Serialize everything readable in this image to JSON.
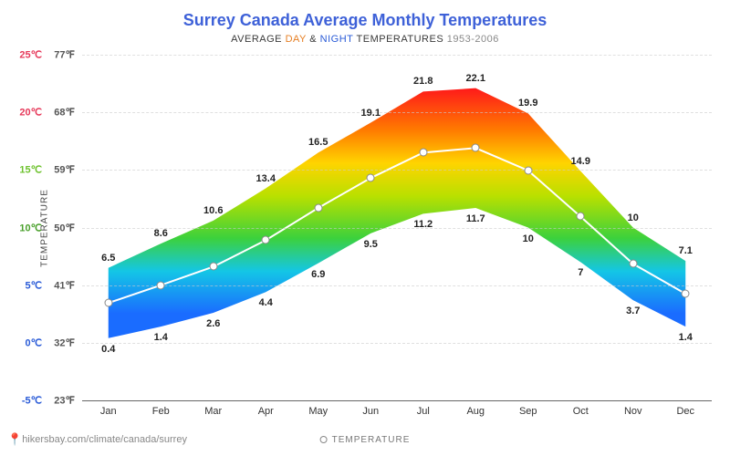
{
  "title": "Surrey Canada Average Monthly Temperatures",
  "subtitle": {
    "prefix": "AVERAGE ",
    "day": "DAY",
    "amp": " & ",
    "night": "NIGHT",
    "mid": " TEMPERATURES ",
    "years": "1953-2006"
  },
  "yaxis_title": "TEMPERATURE",
  "source": "hikersbay.com/climate/canada/surrey",
  "legend_label": "TEMPERATURE",
  "chart": {
    "type": "area-band-line",
    "ylim_c": [
      -5,
      25
    ],
    "yticks": [
      {
        "c": -5,
        "c_label": "-5℃",
        "f_label": "23℉",
        "color": "#2a5bd7"
      },
      {
        "c": 0,
        "c_label": "0℃",
        "f_label": "32℉",
        "color": "#2a5bd7"
      },
      {
        "c": 5,
        "c_label": "5℃",
        "f_label": "41℉",
        "color": "#2a5bd7"
      },
      {
        "c": 10,
        "c_label": "10℃",
        "f_label": "50℉",
        "color": "#4aa02c"
      },
      {
        "c": 15,
        "c_label": "15℃",
        "f_label": "59℉",
        "color": "#6ec22e"
      },
      {
        "c": 20,
        "c_label": "20℃",
        "f_label": "68℉",
        "color": "#e6395a"
      },
      {
        "c": 25,
        "c_label": "25℃",
        "f_label": "77℉",
        "color": "#e6395a"
      }
    ],
    "months": [
      "Jan",
      "Feb",
      "Mar",
      "Apr",
      "May",
      "Jun",
      "Jul",
      "Aug",
      "Sep",
      "Oct",
      "Nov",
      "Dec"
    ],
    "day": [
      6.5,
      8.6,
      10.6,
      13.4,
      16.5,
      19.1,
      21.8,
      22.1,
      19.9,
      14.9,
      10.0,
      7.1
    ],
    "night": [
      0.4,
      1.4,
      2.6,
      4.4,
      6.9,
      9.5,
      11.2,
      11.7,
      10.0,
      7.0,
      3.7,
      1.4
    ],
    "avg": [
      3.45,
      5.0,
      6.6,
      8.9,
      11.7,
      14.3,
      16.5,
      16.9,
      14.95,
      10.95,
      6.85,
      4.25
    ],
    "day_labels": [
      "6.5",
      "8.6",
      "10.6",
      "13.4",
      "16.5",
      "19.1",
      "21.8",
      "22.1",
      "19.9",
      "14.9",
      "10",
      "7.1"
    ],
    "night_labels": [
      "0.4",
      "1.4",
      "2.6",
      "4.4",
      "6.9",
      "9.5",
      "11.2",
      "11.7",
      "10",
      "7",
      "3.7",
      "1.4"
    ],
    "label_fontsize": 11,
    "marker_size": 9,
    "marker_border": "#888888",
    "marker_fill": "#ffffff",
    "line_color": "#ffffff",
    "line_width": 2,
    "gradient_stops": [
      {
        "c": 25,
        "color": "#ff1a1a"
      },
      {
        "c": 20,
        "color": "#ff7a00"
      },
      {
        "c": 16,
        "color": "#ffd400"
      },
      {
        "c": 12,
        "color": "#b8e000"
      },
      {
        "c": 7,
        "color": "#3cd13c"
      },
      {
        "c": 3,
        "color": "#14c6e6"
      },
      {
        "c": -2,
        "color": "#1a6cff"
      }
    ],
    "background": "#ffffff",
    "grid_color": "#cccccc"
  }
}
